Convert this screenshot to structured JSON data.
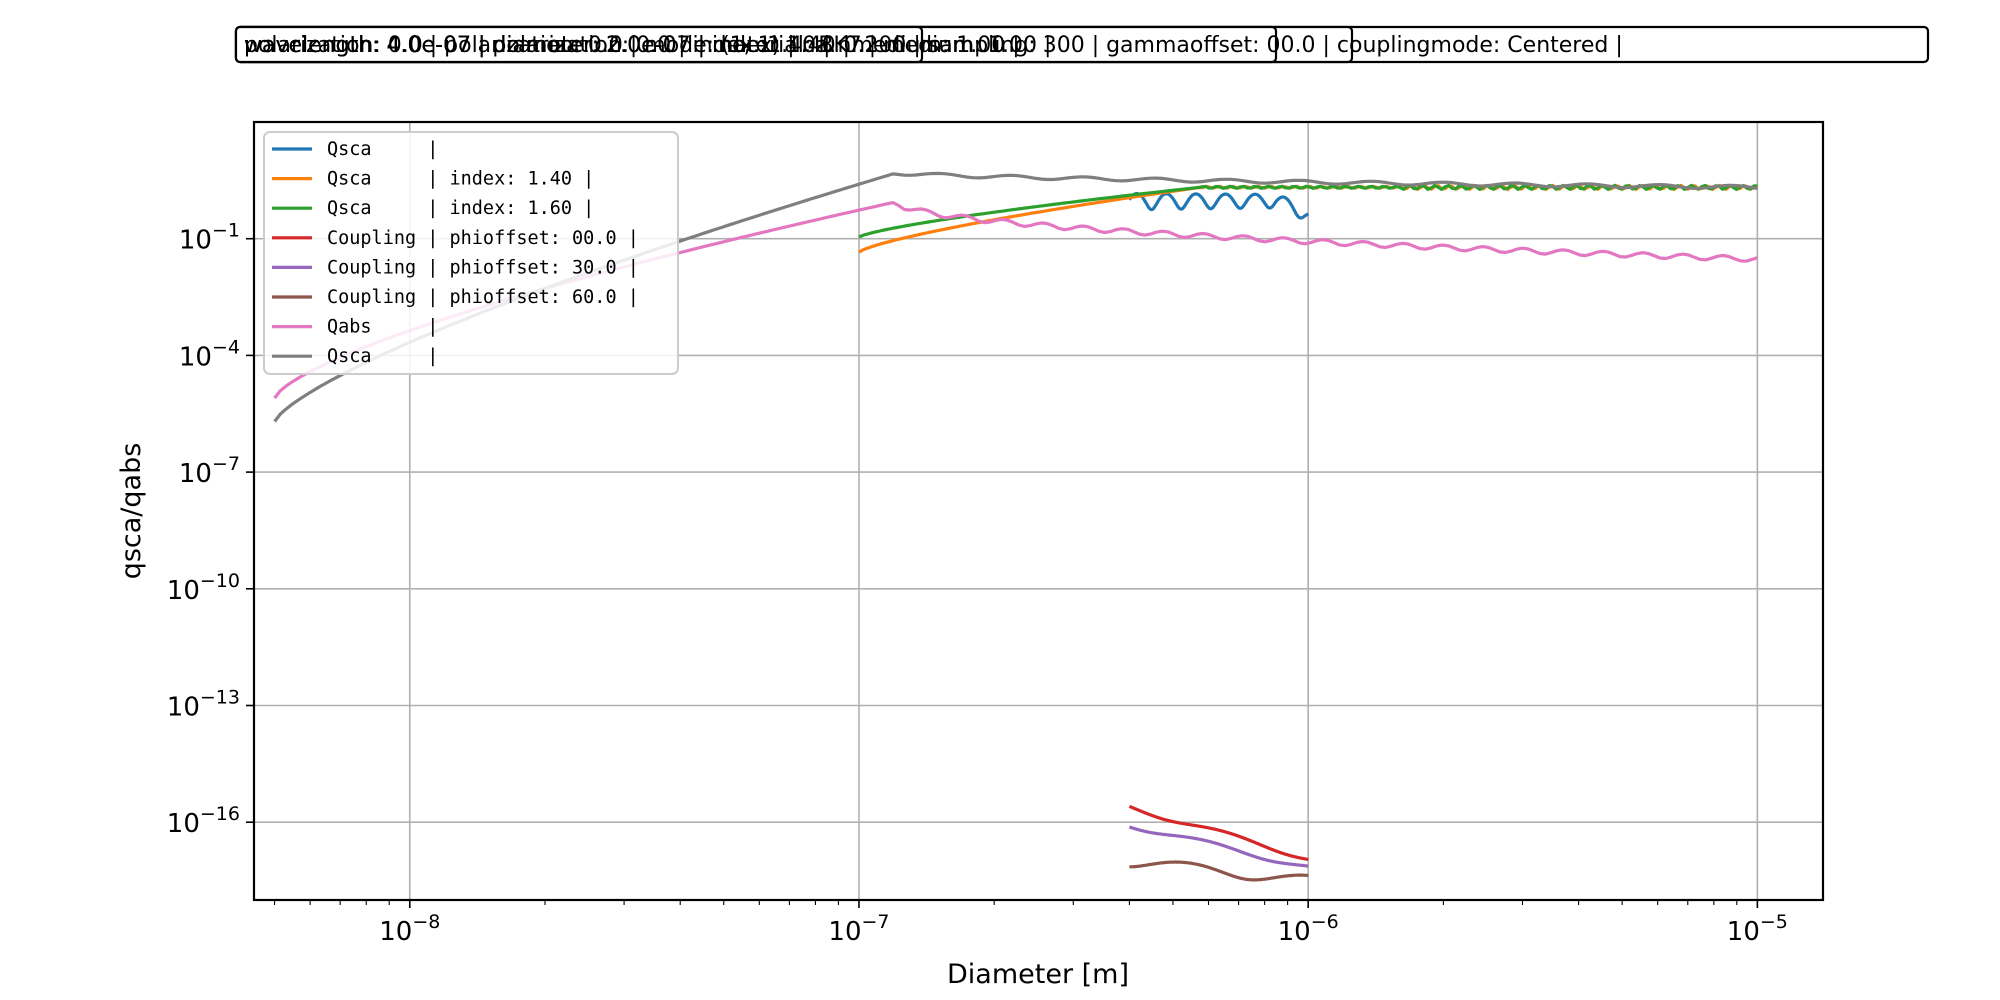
{
  "chart_data": {
    "type": "line",
    "title_boxes": [
      "polarization: 0.0 | polarization: 0.0 | mode: (1, 1) | na: 0.200 | sampling: 300 | gammaoffset: 00.0 | couplingmode: Centered   |",
      "wavelength: 4.0e-07 | diameter: 2.0e-07 | material: BK7 | medium: 1.00 |",
      "wavelength: 4.0e-07 | polarization: 0.0 | index: 1.40 | nmedium: 1.00 |",
      "wavelength: 4.0e-07 | diameter: 2.0e-07 | index: 1.40 |"
    ],
    "xlabel": "Diameter [m]",
    "ylabel": "qsca/qabs",
    "xscale": "log",
    "yscale": "log",
    "xlim": [
      4.5e-09,
      1.4e-05
    ],
    "ylim": [
      1e-18,
      100.0
    ],
    "grid": true,
    "legend_position": "upper-left",
    "x_ticks": [
      {
        "exp": "-8",
        "base": "10",
        "value": 1e-08
      },
      {
        "exp": "-7",
        "base": "10",
        "value": 1e-07
      },
      {
        "exp": "-6",
        "base": "10",
        "value": 1e-06
      },
      {
        "exp": "-5",
        "base": "10",
        "value": 1e-05
      }
    ],
    "y_ticks": [
      {
        "exp": "-1",
        "base": "10",
        "value": 0.1
      },
      {
        "exp": "-4",
        "base": "10",
        "value": 0.0001
      },
      {
        "exp": "-7",
        "base": "10",
        "value": 1e-07
      },
      {
        "exp": "-10",
        "base": "10",
        "value": 1e-10
      },
      {
        "exp": "-13",
        "base": "10",
        "value": 1e-13
      },
      {
        "exp": "-16",
        "base": "10",
        "value": 1e-16
      }
    ],
    "series": [
      {
        "name": "Qsca     |",
        "color": "#1f77b4",
        "x_range": [
          4e-07,
          1e-06
        ],
        "y_shape": "mie-oscillation",
        "y_mid": 1.0
      },
      {
        "name": "Qsca     | index: 1.40 |",
        "color": "#ff7f0e",
        "x_range": [
          1e-07,
          1e-05
        ],
        "y_start": 0.045,
        "y_end": 2.1
      },
      {
        "name": "Qsca     | index: 1.60 |",
        "color": "#2ca02c",
        "x_range": [
          1e-07,
          1e-05
        ],
        "y_start": 0.11,
        "y_end": 2.1
      },
      {
        "name": "Coupling | phioffset: 00.0 |",
        "color": "#d62728",
        "x_range": [
          4e-07,
          1e-06
        ],
        "y_start": 2.5e-16,
        "y_end": 1.2e-17
      },
      {
        "name": "Coupling | phioffset: 30.0 |",
        "color": "#9467bd",
        "x_range": [
          4e-07,
          1e-06
        ],
        "y_start": 8.5e-17,
        "y_end": 7e-18
      },
      {
        "name": "Coupling | phioffset: 60.0 |",
        "color": "#8c564b",
        "x_range": [
          4e-07,
          1e-06
        ],
        "y_start": 1e-17,
        "y_end": 3.3e-18
      },
      {
        "name": "Qabs     |",
        "color": "#e377c2",
        "x_range": [
          5e-09,
          1e-05
        ],
        "y_start": 8e-06,
        "y_peak": 0.9,
        "y_end": 0.03
      },
      {
        "name": "Qsca     |",
        "color": "#7f7f7f",
        "x_range": [
          5e-09,
          1e-05
        ],
        "y_start": 2e-06,
        "y_peak": 5.0,
        "y_end": 2.1
      }
    ]
  }
}
